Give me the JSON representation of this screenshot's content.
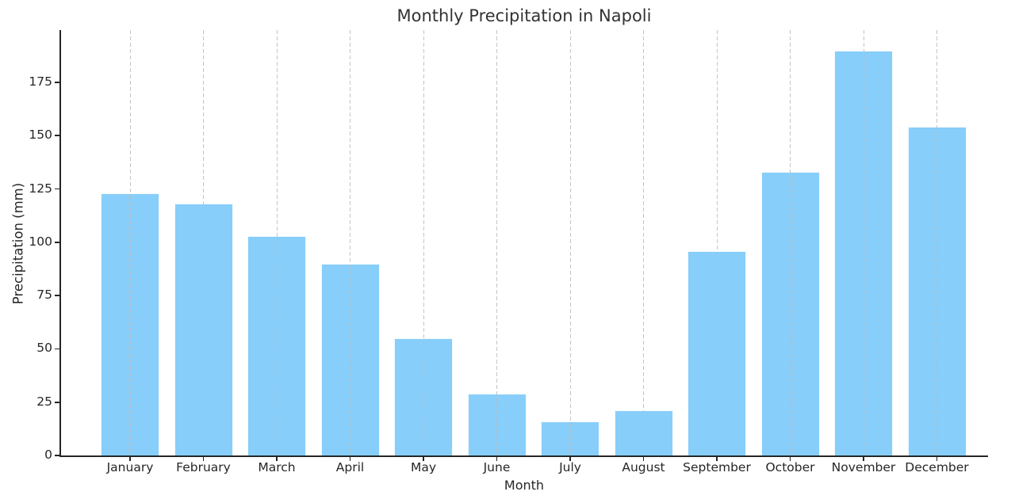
{
  "chart_data": {
    "type": "bar",
    "title": "Monthly Precipitation in Napoli",
    "xlabel": "Month",
    "ylabel": "Precipitation (mm)",
    "categories": [
      "January",
      "February",
      "March",
      "April",
      "May",
      "June",
      "July",
      "August",
      "September",
      "October",
      "November",
      "December"
    ],
    "values": [
      123,
      118,
      103,
      90,
      55,
      29,
      16,
      21,
      96,
      133,
      190,
      154
    ],
    "yticks": [
      0,
      25,
      50,
      75,
      100,
      125,
      150,
      175
    ],
    "ylim": [
      0,
      199.5
    ],
    "grid": "vertical-dashed",
    "legend": "none",
    "colors": {
      "bar_fill": "#87CEFA",
      "bar_edge": "#ffffff",
      "axis": "#262626",
      "grid": "#bbbbbb",
      "title_text": "#333333"
    }
  }
}
